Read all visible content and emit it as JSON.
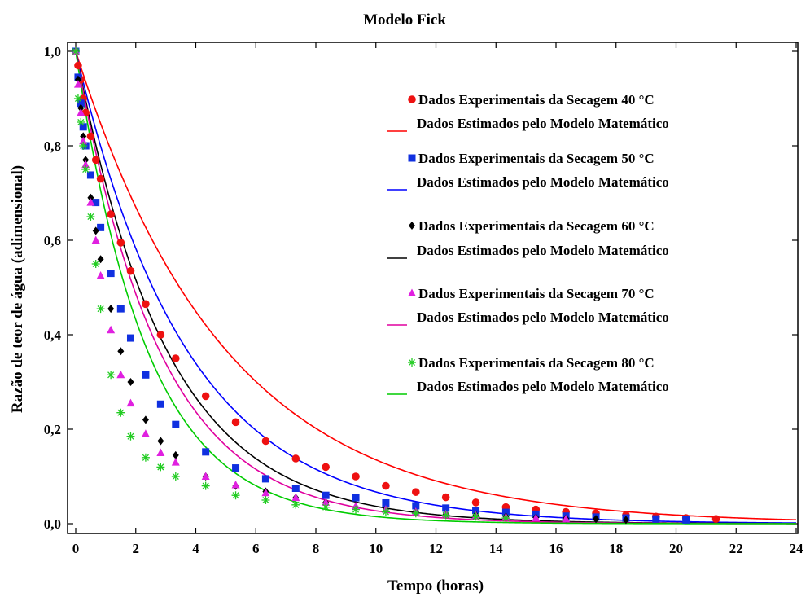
{
  "chart_data": {
    "type": "scatter",
    "title": "Modelo Fick",
    "xlabel": "Tempo (horas)",
    "ylabel": "Razão de teor de água (adimensional)",
    "xlim": [
      0,
      24
    ],
    "ylim": [
      -0.02,
      1.02
    ],
    "xticks": [
      0,
      2,
      4,
      6,
      8,
      10,
      12,
      14,
      16,
      18,
      20,
      22,
      24
    ],
    "xtick_labels": [
      "0",
      "2",
      "4",
      "6",
      "8",
      "10",
      "12",
      "14",
      "16",
      "18",
      "20",
      "22",
      "24"
    ],
    "yticks": [
      0,
      0.2,
      0.4,
      0.6,
      0.8,
      1.0
    ],
    "ytick_labels": [
      "0,0",
      "0,2",
      "0,4",
      "0,6",
      "0,8",
      "1,0"
    ],
    "grid": false,
    "legend_position": "top-right",
    "series": [
      {
        "name": "Dados Experimentais da Secagem 40 °C",
        "marker": "circle",
        "color": "#ee1111",
        "x": [
          0,
          0.08,
          0.17,
          0.25,
          0.33,
          0.5,
          0.67,
          0.83,
          1.17,
          1.5,
          1.83,
          2.33,
          2.83,
          3.33,
          4.33,
          5.33,
          6.33,
          7.33,
          8.33,
          9.33,
          10.33,
          11.33,
          12.33,
          13.33,
          14.33,
          15.33,
          16.33,
          17.33,
          18.33,
          19.33,
          20.33,
          21.33
        ],
        "y": [
          1.0,
          0.97,
          0.94,
          0.9,
          0.87,
          0.82,
          0.77,
          0.73,
          0.655,
          0.595,
          0.535,
          0.465,
          0.4,
          0.35,
          0.27,
          0.215,
          0.175,
          0.138,
          0.12,
          0.1,
          0.08,
          0.067,
          0.056,
          0.045,
          0.035,
          0.03,
          0.025,
          0.022,
          0.018,
          0.015,
          0.012,
          0.01
        ]
      },
      {
        "name": "Dados Estimados pelo Modelo Matemático",
        "line": true,
        "color": "#ff0000",
        "k": 0.2
      },
      {
        "name": "Dados Experimentais da Secagem 50 °C",
        "marker": "square",
        "color": "#1030e0",
        "x": [
          0,
          0.08,
          0.17,
          0.25,
          0.33,
          0.5,
          0.67,
          0.83,
          1.17,
          1.5,
          1.83,
          2.33,
          2.83,
          3.33,
          4.33,
          5.33,
          6.33,
          7.33,
          8.33,
          9.33,
          10.33,
          11.33,
          12.33,
          13.33,
          14.33,
          15.33,
          16.33,
          17.33,
          18.33,
          19.33,
          20.33
        ],
        "y": [
          1.0,
          0.945,
          0.89,
          0.84,
          0.8,
          0.738,
          0.68,
          0.627,
          0.53,
          0.455,
          0.393,
          0.315,
          0.253,
          0.21,
          0.152,
          0.118,
          0.095,
          0.075,
          0.06,
          0.055,
          0.044,
          0.038,
          0.033,
          0.028,
          0.024,
          0.02,
          0.016,
          0.014,
          0.012,
          0.01,
          0.008
        ]
      },
      {
        "name": "Dados Estimados pelo Modelo Matemático",
        "line": true,
        "color": "#0000ff",
        "k": 0.27
      },
      {
        "name": "Dados Experimentais da Secagem 60 °C",
        "marker": "diamond",
        "color": "#000000",
        "x": [
          0,
          0.08,
          0.17,
          0.25,
          0.33,
          0.5,
          0.67,
          0.83,
          1.17,
          1.5,
          1.83,
          2.33,
          2.83,
          3.33,
          4.33,
          5.33,
          6.33,
          7.33,
          8.33,
          9.33,
          10.33,
          11.33,
          12.33,
          13.33,
          14.33,
          15.33,
          16.33,
          17.33,
          18.33
        ],
        "y": [
          1.0,
          0.94,
          0.88,
          0.82,
          0.77,
          0.69,
          0.62,
          0.56,
          0.455,
          0.365,
          0.3,
          0.22,
          0.175,
          0.145,
          0.1,
          0.08,
          0.068,
          0.055,
          0.045,
          0.035,
          0.03,
          0.025,
          0.02,
          0.018,
          0.015,
          0.013,
          0.011,
          0.01,
          0.008
        ]
      },
      {
        "name": "Dados Estimados pelo Modelo Matemático",
        "line": true,
        "color": "#000000",
        "k": 0.33
      },
      {
        "name": "Dados Experimentais da Secagem 70 °C",
        "marker": "triangle",
        "color": "#e020e0",
        "x": [
          0,
          0.08,
          0.17,
          0.25,
          0.33,
          0.5,
          0.67,
          0.83,
          1.17,
          1.5,
          1.83,
          2.33,
          2.83,
          3.33,
          4.33,
          5.33,
          6.33,
          7.33,
          8.33,
          9.33,
          10.33,
          11.33,
          12.33,
          13.33,
          14.33,
          15.33,
          16.33
        ],
        "y": [
          1.0,
          0.93,
          0.87,
          0.81,
          0.76,
          0.68,
          0.6,
          0.525,
          0.41,
          0.315,
          0.255,
          0.19,
          0.15,
          0.13,
          0.1,
          0.082,
          0.065,
          0.055,
          0.045,
          0.037,
          0.03,
          0.025,
          0.02,
          0.017,
          0.014,
          0.012,
          0.01
        ]
      },
      {
        "name": "Dados Estimados pelo Modelo Matemático",
        "line": true,
        "color": "#e0009f",
        "k": 0.36
      },
      {
        "name": "Dados Experimentais da Secagem 80 °C",
        "marker": "asterisk",
        "color": "#22cc22",
        "x": [
          0,
          0.08,
          0.17,
          0.25,
          0.33,
          0.5,
          0.67,
          0.83,
          1.17,
          1.5,
          1.83,
          2.33,
          2.83,
          3.33,
          4.33,
          5.33,
          6.33,
          7.33,
          8.33,
          9.33,
          10.33,
          11.33,
          12.33,
          13.33,
          14.33
        ],
        "y": [
          1.0,
          0.9,
          0.85,
          0.8,
          0.75,
          0.65,
          0.55,
          0.455,
          0.315,
          0.235,
          0.185,
          0.14,
          0.12,
          0.1,
          0.08,
          0.06,
          0.05,
          0.04,
          0.035,
          0.03,
          0.025,
          0.022,
          0.018,
          0.015,
          0.012
        ]
      },
      {
        "name": "Dados Estimados pelo Modelo Matemático",
        "line": true,
        "color": "#00cc00",
        "k": 0.42
      }
    ]
  }
}
